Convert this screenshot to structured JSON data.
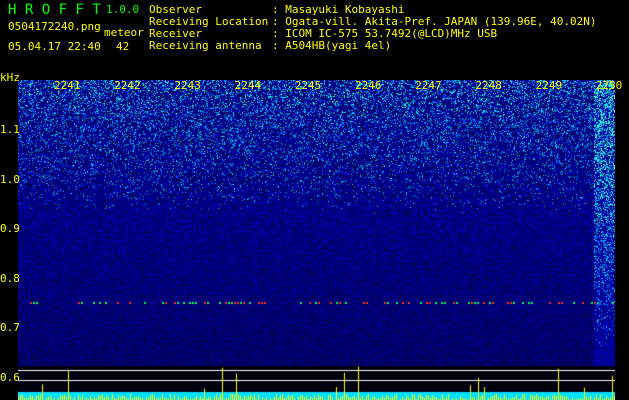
{
  "app": {
    "name": "H R O F F T",
    "version": "1.0.0"
  },
  "file": {
    "name": "0504172240.png",
    "datetime": "05.04.17 22:40"
  },
  "meteor": {
    "label": "meteor",
    "count": "42"
  },
  "info": [
    {
      "label": "Observer",
      "value": ": Masayuki Kobayashi"
    },
    {
      "label": "Receiving Location",
      "value": ": Ogata-vill. Akita-Pref. JAPAN (139.96E, 40.02N)"
    },
    {
      "label": "Receiver",
      "value": ": ICOM IC-575 53.7492(@LCD)MHz USB"
    },
    {
      "label": "Receiving antenna",
      "value": ": A504HB(yagi 4el)"
    }
  ],
  "axis": {
    "y_unit": "kHz",
    "y_ticks": [
      "1.1",
      "1.0",
      "0.9",
      "0.8",
      "0.7",
      "0.6"
    ],
    "x_ticks": [
      "2241",
      "2242",
      "2243",
      "2244",
      "2245",
      "2246",
      "2247",
      "2248",
      "2249",
      "2250"
    ]
  },
  "colors": {
    "text": "#ffff00",
    "title": "#00ff00",
    "background": "#000000",
    "spectrum": "#0020c0"
  }
}
